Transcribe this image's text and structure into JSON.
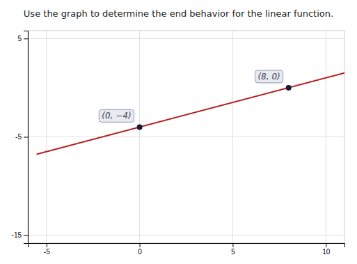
{
  "chart_data": {
    "type": "line",
    "title": "Use the graph to determine the end behavior for the linear function.",
    "xlim": [
      -6,
      11
    ],
    "ylim": [
      -15.8,
      5.8
    ],
    "xticks": [
      -5,
      0,
      5,
      10
    ],
    "yticks": [
      -15,
      -5,
      5
    ],
    "grid": true,
    "series": [
      {
        "type": "line",
        "x": [
          -5.5,
          11
        ],
        "values": [
          -6.75,
          1.5
        ],
        "color": "#b52020"
      },
      {
        "type": "scatter",
        "marker": "circle",
        "x": [
          0,
          8
        ],
        "values": [
          -4,
          0
        ],
        "color": "#1a1a2e"
      }
    ],
    "annotations": [
      {
        "text": "(0, −4)",
        "x": 0,
        "y": -4
      },
      {
        "text": "(8, 0)",
        "x": 8,
        "y": 0
      }
    ]
  }
}
